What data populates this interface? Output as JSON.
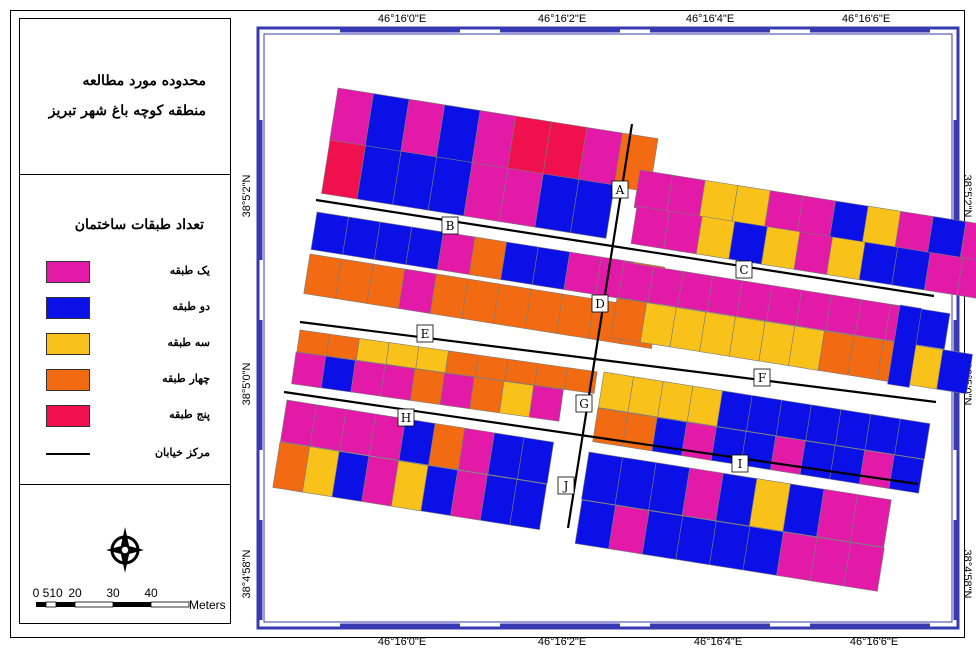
{
  "title": {
    "line1": "محدوده مورد مطالعه",
    "line2": "منطقه کوچه باغ شهر تبریز"
  },
  "legend": {
    "heading": "تعداد طبقات ساختمان",
    "items": [
      {
        "label": "یک طبقه",
        "color": "#e31aa8"
      },
      {
        "label": "دو طبقه",
        "color": "#0a10e6"
      },
      {
        "label": "سه طبقه",
        "color": "#f9c21a"
      },
      {
        "label": "چهار طبقه",
        "color": "#f26b12"
      },
      {
        "label": "پنج طبقه",
        "color": "#f0104e"
      }
    ],
    "street_label": "مرکز خیابان"
  },
  "scale": {
    "ticks": [
      "0",
      "5",
      "10",
      "20",
      "30",
      "40"
    ],
    "unit": "Meters"
  },
  "graticule": {
    "top": [
      "46°16'0\"E",
      "46°16'2\"E",
      "46°16'4\"E",
      "46°16'6\"E"
    ],
    "bottom": [
      "46°16'0\"E",
      "46°16'2\"E",
      "46°16'4\"E",
      "46°16'6\"E"
    ],
    "left": [
      "38°5'2\"N",
      "38°5'0\"N",
      "38°4'58\"N"
    ],
    "right": [
      "38°5'2\"N",
      "38°5'0\"N",
      "38°4'58\"N"
    ]
  },
  "street_labels": [
    "A",
    "B",
    "C",
    "D",
    "E",
    "F",
    "G",
    "H",
    "I",
    "J"
  ],
  "colors": {
    "frame": "#2a2aa0",
    "street": "#000000"
  }
}
